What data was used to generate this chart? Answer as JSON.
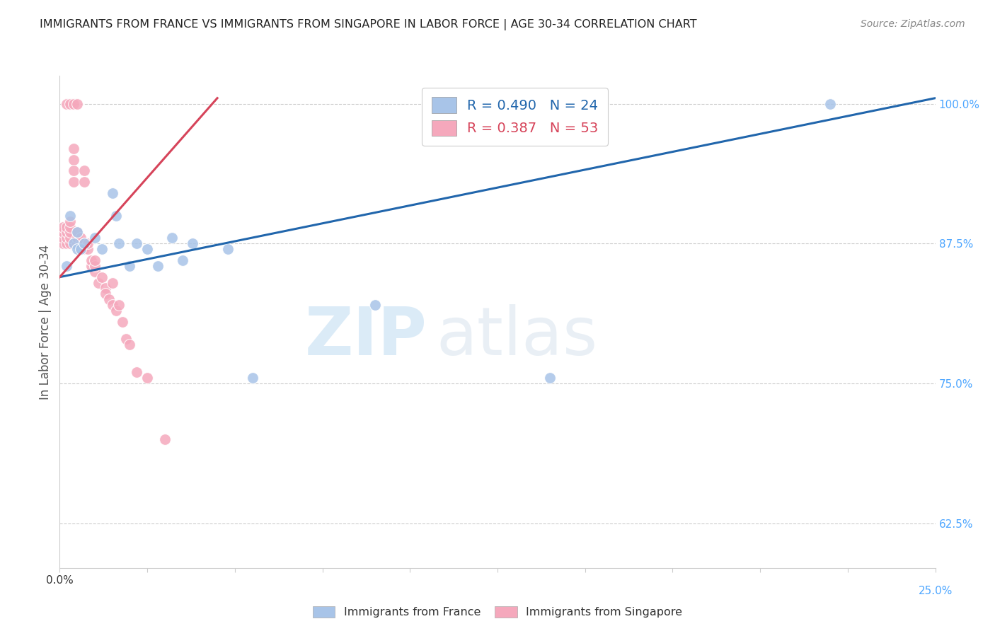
{
  "title": "IMMIGRANTS FROM FRANCE VS IMMIGRANTS FROM SINGAPORE IN LABOR FORCE | AGE 30-34 CORRELATION CHART",
  "source": "Source: ZipAtlas.com",
  "ylabel": "In Labor Force | Age 30-34",
  "xlim": [
    0.0,
    0.25
  ],
  "ylim": [
    0.585,
    1.025
  ],
  "yticks_right": [
    0.625,
    0.75,
    0.875,
    1.0
  ],
  "ytick_labels_right": [
    "62.5%",
    "75.0%",
    "87.5%",
    "100.0%"
  ],
  "france_color": "#a8c4e8",
  "singapore_color": "#f5a8bc",
  "france_line_color": "#2166ac",
  "singapore_line_color": "#d6445a",
  "france_R": 0.49,
  "france_N": 24,
  "singapore_R": 0.387,
  "singapore_N": 53,
  "watermark_zip": "ZIP",
  "watermark_atlas": "atlas",
  "background_color": "#ffffff",
  "grid_color": "#cccccc",
  "title_color": "#222222",
  "axis_label_color": "#555555",
  "right_axis_color": "#4da6ff",
  "france_x": [
    0.002,
    0.003,
    0.004,
    0.005,
    0.005,
    0.006,
    0.007,
    0.01,
    0.012,
    0.015,
    0.016,
    0.017,
    0.02,
    0.022,
    0.025,
    0.028,
    0.032,
    0.035,
    0.038,
    0.048,
    0.055,
    0.09,
    0.14,
    0.22
  ],
  "france_y": [
    0.855,
    0.9,
    0.875,
    0.885,
    0.87,
    0.87,
    0.875,
    0.88,
    0.87,
    0.92,
    0.9,
    0.875,
    0.855,
    0.875,
    0.87,
    0.855,
    0.88,
    0.86,
    0.875,
    0.87,
    0.755,
    0.82,
    0.755,
    1.0
  ],
  "singapore_x": [
    0.001,
    0.001,
    0.001,
    0.001,
    0.002,
    0.002,
    0.002,
    0.002,
    0.002,
    0.003,
    0.003,
    0.003,
    0.003,
    0.003,
    0.003,
    0.004,
    0.004,
    0.004,
    0.004,
    0.004,
    0.005,
    0.005,
    0.005,
    0.005,
    0.006,
    0.006,
    0.006,
    0.007,
    0.007,
    0.007,
    0.007,
    0.008,
    0.008,
    0.009,
    0.009,
    0.01,
    0.01,
    0.01,
    0.011,
    0.012,
    0.013,
    0.013,
    0.014,
    0.015,
    0.015,
    0.016,
    0.017,
    0.018,
    0.019,
    0.02,
    0.022,
    0.025,
    0.03
  ],
  "singapore_y": [
    0.875,
    0.88,
    0.885,
    0.89,
    0.875,
    0.88,
    0.885,
    0.89,
    1.0,
    0.875,
    0.88,
    0.885,
    0.89,
    0.895,
    1.0,
    0.95,
    0.94,
    0.93,
    0.96,
    1.0,
    0.875,
    0.88,
    0.885,
    1.0,
    0.87,
    0.875,
    0.88,
    0.875,
    0.87,
    0.93,
    0.94,
    0.87,
    0.875,
    0.855,
    0.86,
    0.85,
    0.855,
    0.86,
    0.84,
    0.845,
    0.835,
    0.83,
    0.825,
    0.84,
    0.82,
    0.815,
    0.82,
    0.805,
    0.79,
    0.785,
    0.76,
    0.755,
    0.7
  ],
  "france_line_x": [
    0.0,
    0.25
  ],
  "france_line_y": [
    0.845,
    1.005
  ],
  "singapore_line_x": [
    0.0,
    0.045
  ],
  "singapore_line_y": [
    0.845,
    1.005
  ]
}
